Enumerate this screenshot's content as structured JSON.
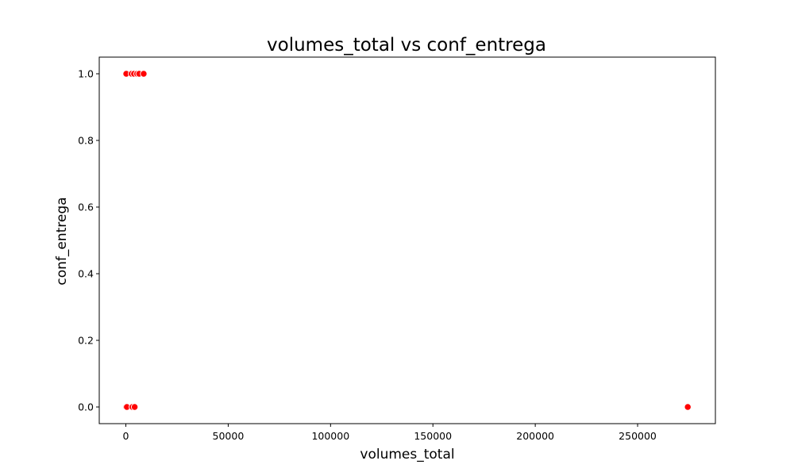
{
  "chart_data": {
    "type": "scatter",
    "title": "volumes_total vs conf_entrega",
    "xlabel": "volumes_total",
    "ylabel": "conf_entrega",
    "xlim": [
      -13000,
      288000
    ],
    "ylim": [
      -0.05,
      1.05
    ],
    "x_ticks": [
      0,
      50000,
      100000,
      150000,
      200000,
      250000
    ],
    "x_tick_labels": [
      "0",
      "50000",
      "100000",
      "150000",
      "200000",
      "250000"
    ],
    "y_ticks": [
      0.0,
      0.2,
      0.4,
      0.6,
      0.8,
      1.0
    ],
    "y_tick_labels": [
      "0.0",
      "0.2",
      "0.4",
      "0.6",
      "0.8",
      "1.0"
    ],
    "grid": false,
    "marker_color": "#ff0000",
    "marker_edge_color": "#ffffff",
    "points": [
      {
        "x": 0,
        "y": 1.0
      },
      {
        "x": 200,
        "y": 1.0
      },
      {
        "x": 2800,
        "y": 1.0
      },
      {
        "x": 4000,
        "y": 1.0
      },
      {
        "x": 5500,
        "y": 1.0
      },
      {
        "x": 6500,
        "y": 1.0
      },
      {
        "x": 8700,
        "y": 1.0
      },
      {
        "x": 100,
        "y": 0.0
      },
      {
        "x": 500,
        "y": 0.0
      },
      {
        "x": 3200,
        "y": 0.0
      },
      {
        "x": 4300,
        "y": 0.0
      },
      {
        "x": 274500,
        "y": 0.0
      }
    ]
  }
}
